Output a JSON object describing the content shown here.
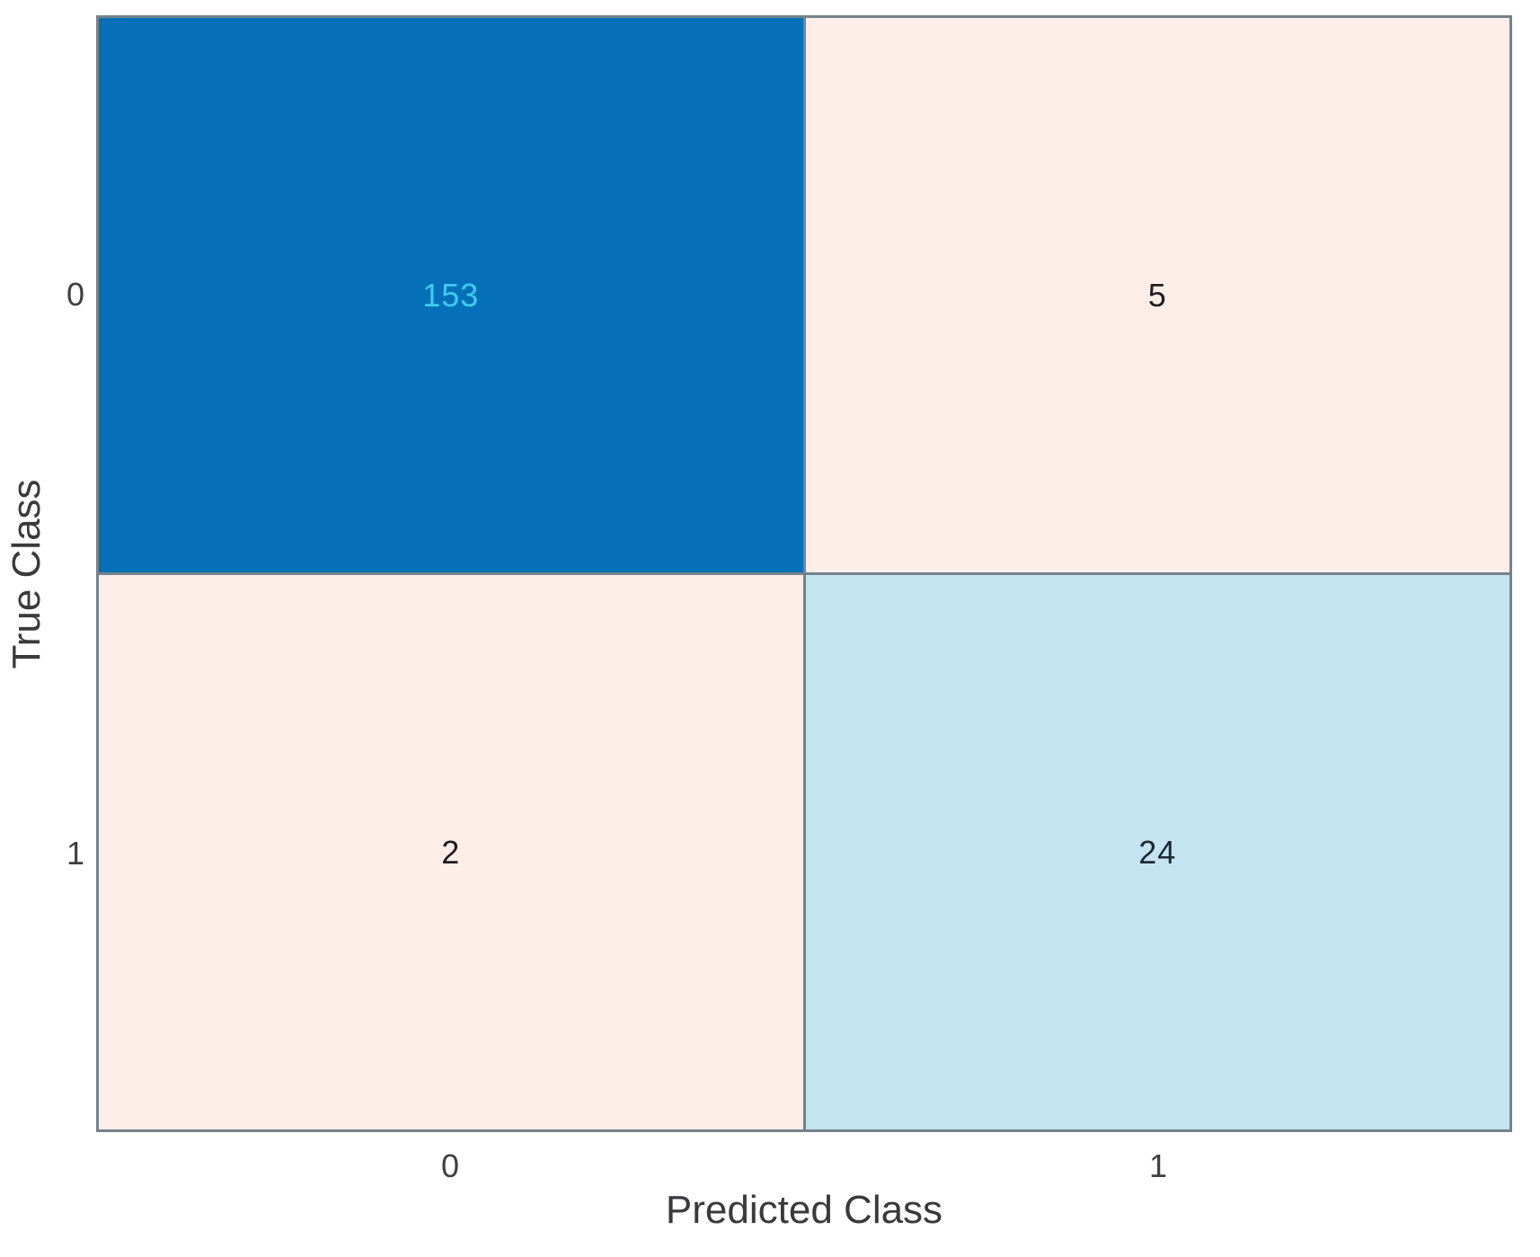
{
  "chart_data": {
    "type": "heatmap",
    "subtype": "confusion-matrix",
    "title": "",
    "xlabel": "Predicted Class",
    "ylabel": "True Class",
    "x_categories": [
      "0",
      "1"
    ],
    "y_categories": [
      "0",
      "1"
    ],
    "matrix_rows_true_by_pred": [
      [
        153,
        5
      ],
      [
        2,
        24
      ]
    ],
    "cells": [
      {
        "true_class": "0",
        "predicted_class": "0",
        "value": "153",
        "bg": "#0570b8",
        "fg": "#3fcbf0"
      },
      {
        "true_class": "0",
        "predicted_class": "1",
        "value": "5",
        "bg": "#fdeeea",
        "fg": "#211c1d"
      },
      {
        "true_class": "1",
        "predicted_class": "0",
        "value": "2",
        "bg": "#fdeeea",
        "fg": "#211c1d"
      },
      {
        "true_class": "1",
        "predicted_class": "1",
        "value": "24",
        "bg": "#c5e4f2",
        "fg": "#1d2a33"
      }
    ],
    "grid_color": "#76828a",
    "axis_text_color": "#3a3a3c",
    "background": "#ffffff",
    "legend": "none",
    "grid": "cell-borders"
  }
}
